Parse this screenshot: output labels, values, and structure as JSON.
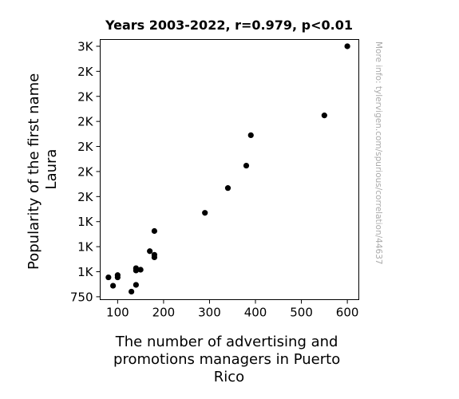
{
  "chart_data": {
    "type": "scatter",
    "title": "Years 2003-2022, r=0.979, p<0.01",
    "xlabel": [
      "The number of advertising and",
      "promotions managers in Puerto",
      "Rico"
    ],
    "ylabel": [
      "Popularity of the first name",
      "Laura"
    ],
    "side_note": "More info: tylervigen.com/spurious/correlation/44637",
    "xlim": [
      62,
      625
    ],
    "ylim": [
      727,
      2804
    ],
    "x_ticks": [
      100,
      200,
      300,
      400,
      500,
      600
    ],
    "x_tick_labels": [
      "100",
      "200",
      "300",
      "400",
      "500",
      "600"
    ],
    "y_ticks": [
      750,
      950,
      1150,
      1350,
      1550,
      1750,
      1950,
      2150,
      2350,
      2550,
      2750
    ],
    "y_tick_labels": [
      "750",
      "1K",
      "1K",
      "1K",
      "2K",
      "2K",
      "2K",
      "2K",
      "2K",
      "2K",
      "3K"
    ],
    "grid": false,
    "marker_color": "#000000",
    "points": [
      {
        "x": 80,
        "y": 905
      },
      {
        "x": 90,
        "y": 838
      },
      {
        "x": 100,
        "y": 923
      },
      {
        "x": 100,
        "y": 905
      },
      {
        "x": 130,
        "y": 791
      },
      {
        "x": 140,
        "y": 845
      },
      {
        "x": 140,
        "y": 978
      },
      {
        "x": 140,
        "y": 960
      },
      {
        "x": 150,
        "y": 966
      },
      {
        "x": 170,
        "y": 1114
      },
      {
        "x": 180,
        "y": 1085
      },
      {
        "x": 180,
        "y": 1065
      },
      {
        "x": 180,
        "y": 1275
      },
      {
        "x": 290,
        "y": 1420
      },
      {
        "x": 340,
        "y": 1618
      },
      {
        "x": 380,
        "y": 1797
      },
      {
        "x": 390,
        "y": 2040
      },
      {
        "x": 550,
        "y": 2198
      },
      {
        "x": 600,
        "y": 2750
      }
    ]
  }
}
